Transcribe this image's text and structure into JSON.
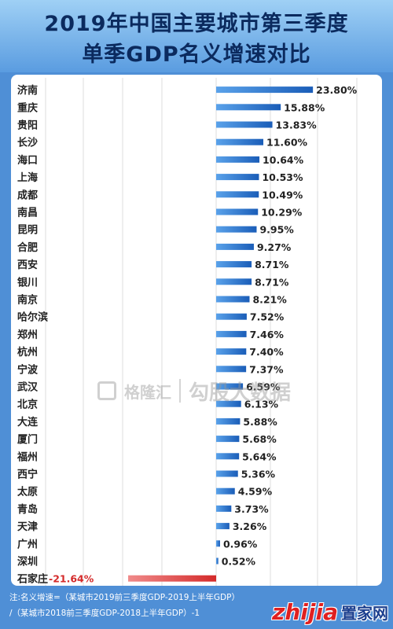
{
  "title": {
    "line1": "2019年中国主要城市第三季度",
    "line2": "单季GDP名义增速对比"
  },
  "watermark": {
    "brand": "格隆汇",
    "text": "勾股大数据"
  },
  "note": {
    "line1": "注:名义增速=（某城市2019前三季度GDP-2019上半年GDP）",
    "line2": "/（某城市2018前三季度GDP-2018上半年GDP）-1"
  },
  "logo": {
    "main": "zhijia",
    "sub": "置家网"
  },
  "colors": {
    "positive_bar": "#1a5db8",
    "negative_bar": "#d42a2a",
    "background": "#4f8fd6",
    "title": "#0b2a5e"
  },
  "chart_data": {
    "type": "bar",
    "orientation": "horizontal",
    "unit": "%",
    "grid": true,
    "xlim": [
      -30,
      30
    ],
    "categories": [
      "济南",
      "重庆",
      "贵阳",
      "长沙",
      "海口",
      "上海",
      "成都",
      "南昌",
      "昆明",
      "合肥",
      "西安",
      "银川",
      "南京",
      "哈尔滨",
      "郑州",
      "杭州",
      "宁波",
      "武汉",
      "北京",
      "大连",
      "厦门",
      "福州",
      "西宁",
      "太原",
      "青岛",
      "天津",
      "广州",
      "深圳",
      "石家庄"
    ],
    "values": [
      23.8,
      15.88,
      13.83,
      11.6,
      10.64,
      10.53,
      10.49,
      10.29,
      9.95,
      9.27,
      8.71,
      8.71,
      8.21,
      7.52,
      7.46,
      7.4,
      7.37,
      6.59,
      6.13,
      5.88,
      5.68,
      5.64,
      5.36,
      4.59,
      3.73,
      3.26,
      0.96,
      0.52,
      -21.64
    ],
    "labels": [
      "23.80%",
      "15.88%",
      "13.83%",
      "11.60%",
      "10.64%",
      "10.53%",
      "10.49%",
      "10.29%",
      "9.95%",
      "9.27%",
      "8.71%",
      "8.71%",
      "8.21%",
      "7.52%",
      "7.46%",
      "7.40%",
      "7.37%",
      "6.59%",
      "6.13%",
      "5.88%",
      "5.68%",
      "5.64%",
      "5.36%",
      "4.59%",
      "3.73%",
      "3.26%",
      "0.96%",
      "0.52%",
      "-21.64%"
    ]
  }
}
